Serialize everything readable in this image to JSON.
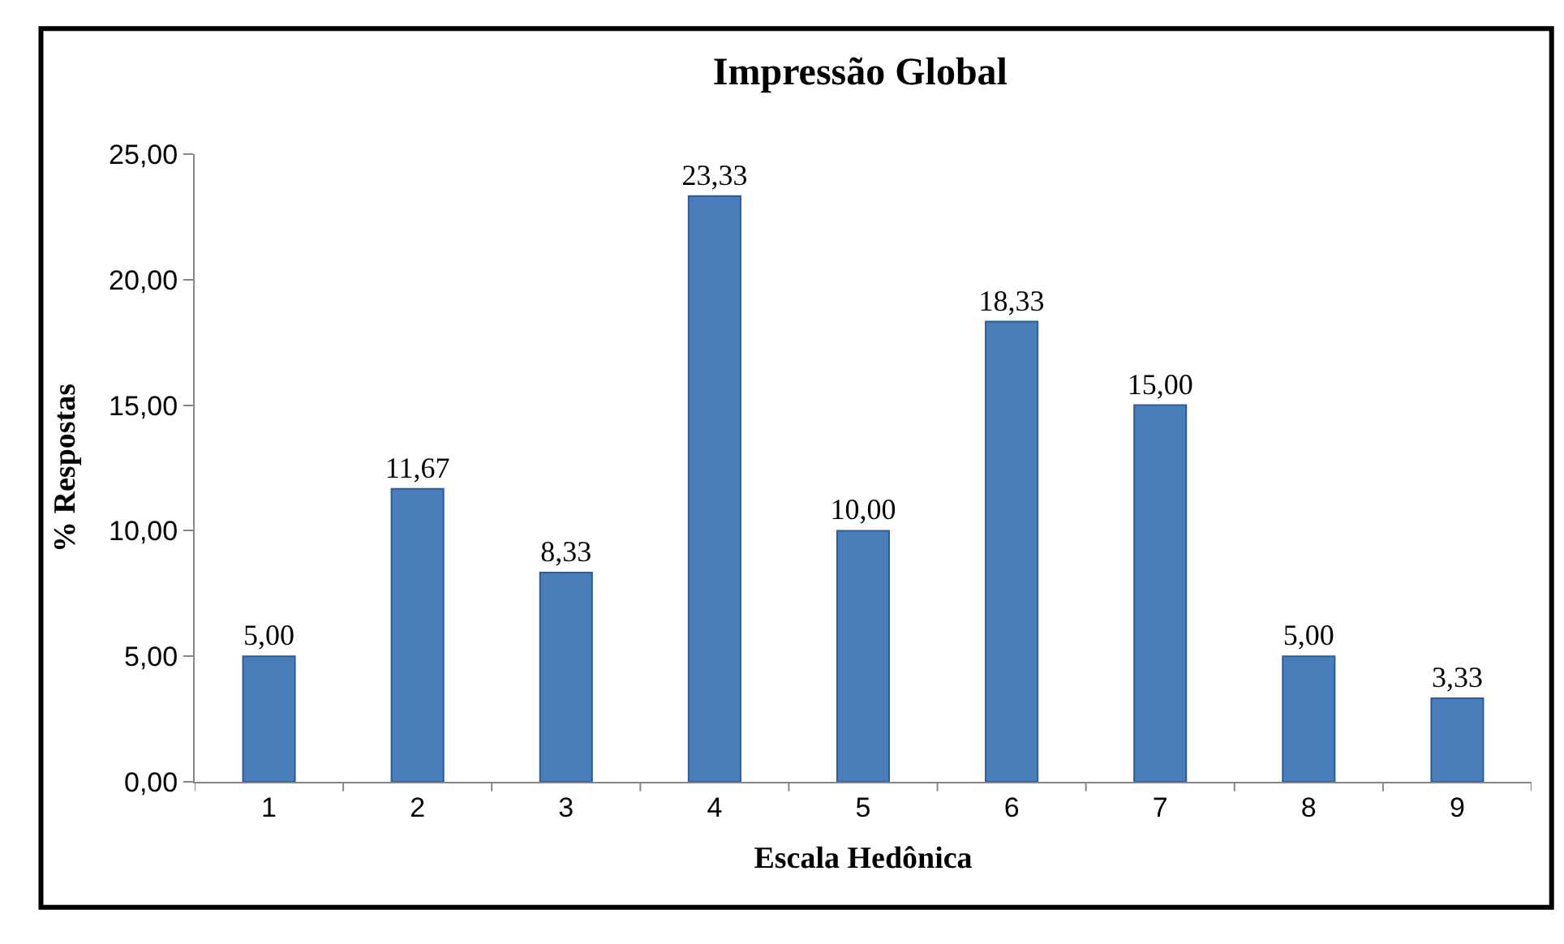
{
  "chart_data": {
    "type": "bar",
    "title": "Impressão Global",
    "xlabel": "Escala Hedônica",
    "ylabel": "% Respostas",
    "categories": [
      "1",
      "2",
      "3",
      "4",
      "5",
      "6",
      "7",
      "8",
      "9"
    ],
    "values": [
      5.0,
      11.67,
      8.33,
      23.33,
      10.0,
      18.33,
      15.0,
      5.0,
      3.33
    ],
    "value_labels": [
      "5,00",
      "11,67",
      "8,33",
      "23,33",
      "10,00",
      "18,33",
      "15,00",
      "5,00",
      "3,33"
    ],
    "color": "#4a7ebb",
    "ylim": [
      0,
      25
    ],
    "yticks": [
      {
        "value": 0,
        "label": "0,00"
      },
      {
        "value": 5,
        "label": "5,00"
      },
      {
        "value": 10,
        "label": "10,00"
      },
      {
        "value": 15,
        "label": "15,00"
      },
      {
        "value": 20,
        "label": "20,00"
      },
      {
        "value": 25,
        "label": "25,00"
      }
    ],
    "legend": false
  }
}
